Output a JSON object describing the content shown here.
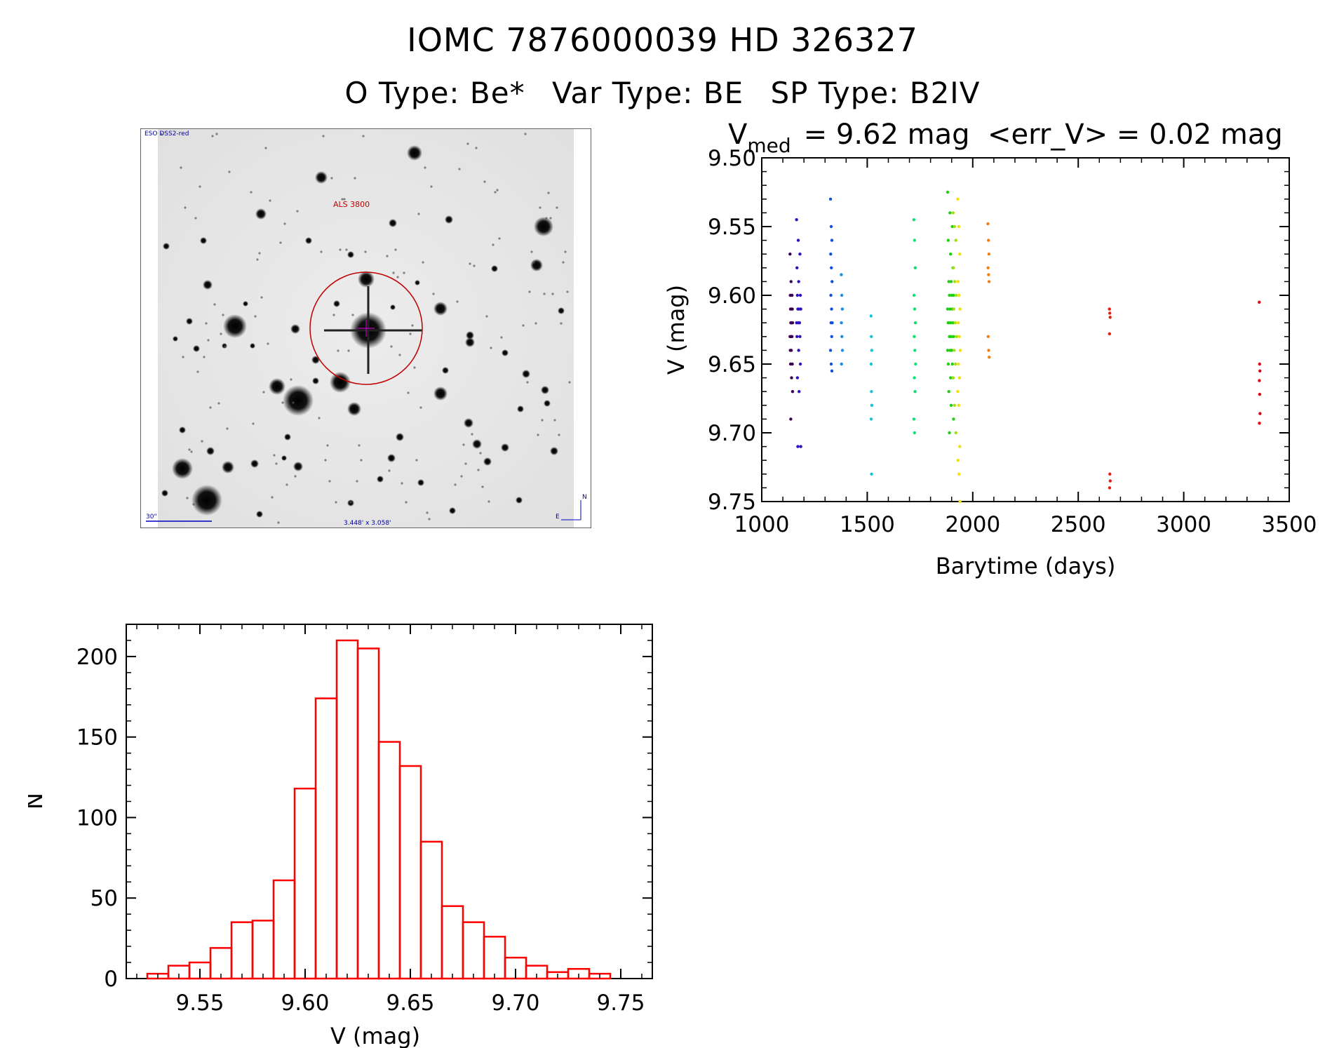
{
  "header": {
    "title_line1": "IOMC 7876000039    HD 326327",
    "otype": "O Type: Be*",
    "vartype": "Var Type: BE",
    "sptype": "SP Type: B2IV"
  },
  "image_panel": {
    "label_top_left": "ESO DSS2-red",
    "label_target": "ALS 3800",
    "label_scale": "30\"",
    "label_fov": "3.448' x 3.058'",
    "label_north": "N",
    "label_east": "E"
  },
  "chart_data": [
    {
      "type": "scatter",
      "title_v": "V",
      "title_sub": "med",
      "title_rest": "= 9.62 mag  <err_V> = 0.02 mag",
      "xlabel": "Barytime (days)",
      "ylabel": "V (mag)",
      "xlim": [
        1000,
        3500
      ],
      "ylim": [
        9.75,
        9.5
      ],
      "xticks": [
        "1000",
        "1500",
        "2000",
        "2500",
        "3000",
        "3500"
      ],
      "xtick_values": [
        1000,
        1500,
        2000,
        2500,
        3000,
        3500
      ],
      "yticks": [
        "9.50",
        "9.55",
        "9.60",
        "9.65",
        "9.70",
        "9.75"
      ],
      "ytick_values": [
        9.5,
        9.55,
        9.6,
        9.65,
        9.7,
        9.75
      ],
      "groups": [
        {
          "x": 1140,
          "x_spread": 6,
          "y": [
            9.57,
            9.59,
            9.6,
            9.6,
            9.61,
            9.61,
            9.61,
            9.62,
            9.62,
            9.62,
            9.62,
            9.63,
            9.63,
            9.63,
            9.64,
            9.64,
            9.65,
            9.65,
            9.66,
            9.67,
            9.69
          ],
          "color": "#3a0050"
        },
        {
          "x": 1175,
          "x_spread": 10,
          "y": [
            9.545,
            9.56,
            9.57,
            9.58,
            9.59,
            9.6,
            9.6,
            9.61,
            9.61,
            9.61,
            9.62,
            9.62,
            9.62,
            9.63,
            9.63,
            9.64,
            9.65,
            9.66,
            9.67,
            9.71,
            9.71
          ],
          "color": "#3010c0"
        },
        {
          "x": 1330,
          "x_spread": 4,
          "y": [
            9.53,
            9.55,
            9.56,
            9.57,
            9.58,
            9.59,
            9.6,
            9.61,
            9.62,
            9.62,
            9.63,
            9.64,
            9.65,
            9.655
          ],
          "color": "#1050e0"
        },
        {
          "x": 1380,
          "x_spread": 3,
          "y": [
            9.585,
            9.6,
            9.61,
            9.62,
            9.63,
            9.64,
            9.65
          ],
          "color": "#1890e0"
        },
        {
          "x": 1520,
          "x_spread": 2,
          "y": [
            9.615,
            9.63,
            9.64,
            9.65,
            9.67,
            9.68,
            9.69,
            9.73
          ],
          "color": "#10c8d8"
        },
        {
          "x": 1725,
          "x_spread": 4,
          "y": [
            9.545,
            9.56,
            9.58,
            9.6,
            9.61,
            9.62,
            9.63,
            9.64,
            9.65,
            9.66,
            9.67,
            9.69,
            9.7
          ],
          "color": "#10e070"
        },
        {
          "x": 1895,
          "x_spread": 14,
          "y": [
            9.525,
            9.54,
            9.55,
            9.56,
            9.57,
            9.58,
            9.59,
            9.59,
            9.6,
            9.6,
            9.6,
            9.61,
            9.61,
            9.61,
            9.62,
            9.62,
            9.62,
            9.62,
            9.63,
            9.63,
            9.63,
            9.64,
            9.64,
            9.64,
            9.65,
            9.65,
            9.66,
            9.66,
            9.67,
            9.68,
            9.69,
            9.7
          ],
          "color": "#20d010"
        },
        {
          "x": 1915,
          "x_spread": 8,
          "y": [
            9.54,
            9.55,
            9.56,
            9.58,
            9.59,
            9.6,
            9.61,
            9.62,
            9.63,
            9.64,
            9.65,
            9.66,
            9.68,
            9.7
          ],
          "color": "#a0e010"
        },
        {
          "x": 1935,
          "x_spread": 6,
          "y": [
            9.53,
            9.55,
            9.57,
            9.59,
            9.6,
            9.61,
            9.62,
            9.63,
            9.64,
            9.65,
            9.66,
            9.67,
            9.68,
            9.71,
            9.72,
            9.73,
            9.75
          ],
          "color": "#f0e010"
        },
        {
          "x": 2075,
          "x_spread": 3,
          "y": [
            9.548,
            9.56,
            9.57,
            9.58,
            9.585,
            9.59,
            9.63,
            9.64,
            9.645
          ],
          "color": "#f08010"
        },
        {
          "x": 2650,
          "x_spread": 2,
          "y": [
            9.61,
            9.613,
            9.616,
            9.628,
            9.73,
            9.735,
            9.74
          ],
          "color": "#e02010"
        },
        {
          "x": 3360,
          "x_spread": 2,
          "y": [
            9.605,
            9.65,
            9.655,
            9.662,
            9.672,
            9.686,
            9.693
          ],
          "color": "#e00010"
        }
      ]
    },
    {
      "type": "bar",
      "histogram": true,
      "xlabel": "V (mag)",
      "ylabel": "N",
      "xlim": [
        9.515,
        9.765
      ],
      "ylim": [
        0,
        220
      ],
      "bin_width": 0.01,
      "bin_starts": [
        9.525,
        9.535,
        9.545,
        9.555,
        9.565,
        9.575,
        9.585,
        9.595,
        9.605,
        9.615,
        9.625,
        9.635,
        9.645,
        9.655,
        9.665,
        9.675,
        9.685,
        9.695,
        9.705,
        9.715,
        9.725,
        9.735
      ],
      "values": [
        3,
        8,
        10,
        19,
        35,
        36,
        61,
        118,
        174,
        210,
        205,
        147,
        132,
        85,
        45,
        35,
        26,
        13,
        8,
        4,
        6,
        3
      ],
      "xticks": [
        "9.55",
        "9.60",
        "9.65",
        "9.70",
        "9.75"
      ],
      "xtick_values": [
        9.55,
        9.6,
        9.65,
        9.7,
        9.75
      ],
      "yticks": [
        "0",
        "50",
        "100",
        "150",
        "200"
      ],
      "ytick_values": [
        0,
        50,
        100,
        150,
        200
      ],
      "bar_color": "#ff0000"
    }
  ]
}
